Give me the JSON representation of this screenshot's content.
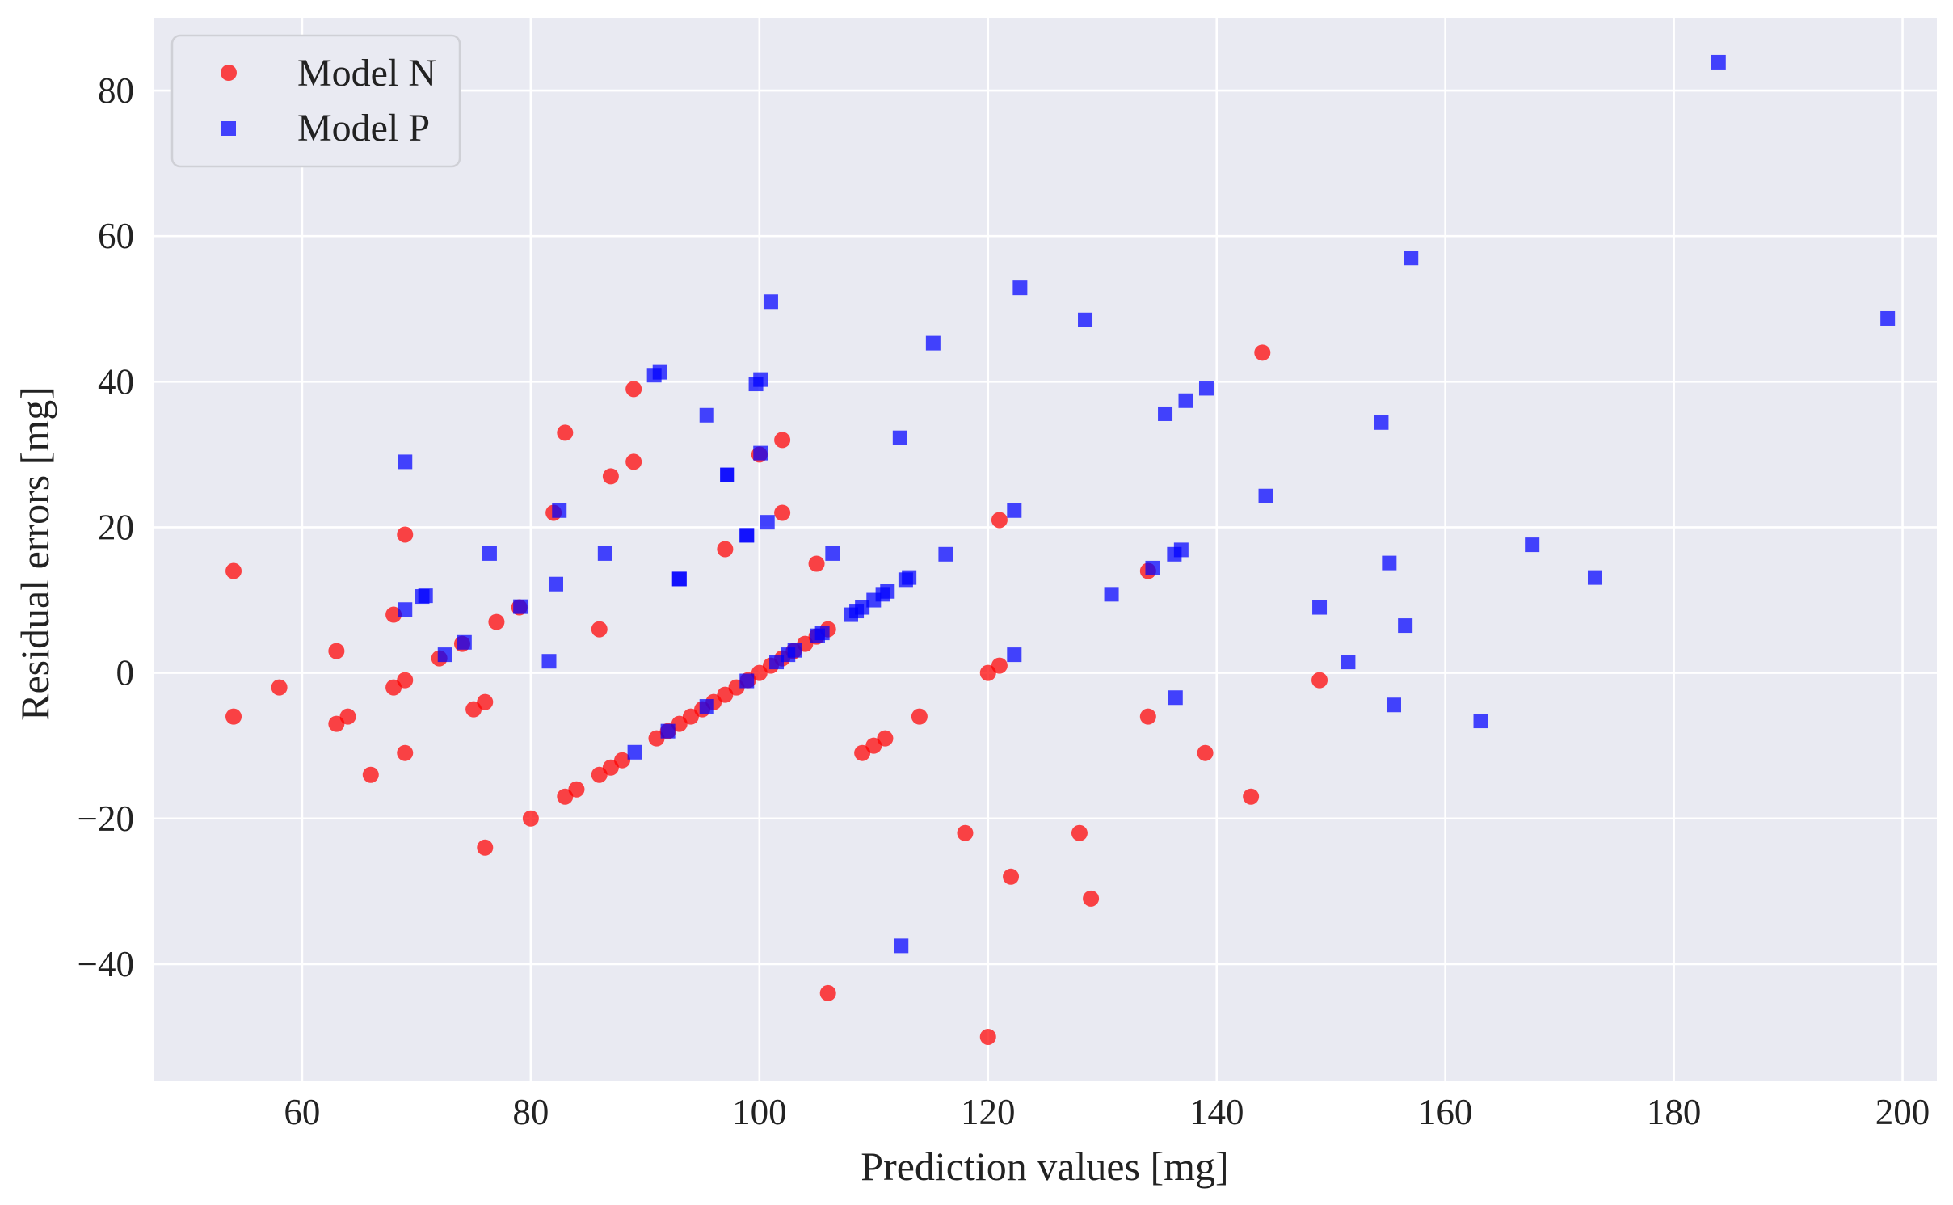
{
  "chart_data": {
    "type": "scatter",
    "xlabel": "Prediction values [mg]",
    "ylabel": "Residual errors [mg]",
    "xlim": [
      47,
      203
    ],
    "ylim": [
      -56,
      90
    ],
    "x_ticks": [
      60,
      80,
      100,
      120,
      140,
      160,
      180,
      200
    ],
    "y_ticks": [
      -40,
      -20,
      0,
      20,
      40,
      60,
      80
    ],
    "x_tick_labels": [
      "60",
      "80",
      "100",
      "120",
      "140",
      "160",
      "180",
      "200"
    ],
    "y_tick_labels": [
      "−40",
      "−20",
      "0",
      "20",
      "40",
      "60",
      "80"
    ],
    "grid": true,
    "legend_position": "top-left",
    "series": [
      {
        "name": "Model N",
        "marker": "circle",
        "color": "#ff0000",
        "points": [
          [
            54,
            14
          ],
          [
            54,
            -6
          ],
          [
            58,
            -2
          ],
          [
            63,
            3
          ],
          [
            63,
            -7
          ],
          [
            64,
            -6
          ],
          [
            66,
            -14
          ],
          [
            68,
            8
          ],
          [
            68,
            -2
          ],
          [
            69,
            19
          ],
          [
            69,
            -1
          ],
          [
            69,
            -11
          ],
          [
            72,
            2
          ],
          [
            74,
            4
          ],
          [
            75,
            -5
          ],
          [
            76,
            -4
          ],
          [
            76,
            -24
          ],
          [
            77,
            7
          ],
          [
            79,
            9
          ],
          [
            80,
            -20
          ],
          [
            82,
            22
          ],
          [
            83,
            33
          ],
          [
            83,
            -17
          ],
          [
            84,
            -16
          ],
          [
            86,
            6
          ],
          [
            86,
            -14
          ],
          [
            87,
            27
          ],
          [
            87,
            -13
          ],
          [
            88,
            -12
          ],
          [
            89,
            39
          ],
          [
            89,
            29
          ],
          [
            91,
            -9
          ],
          [
            92,
            -8
          ],
          [
            93,
            -7
          ],
          [
            94,
            -6
          ],
          [
            95,
            -5
          ],
          [
            96,
            -4
          ],
          [
            97,
            17
          ],
          [
            97,
            -3
          ],
          [
            98,
            -2
          ],
          [
            99,
            -1
          ],
          [
            100,
            30
          ],
          [
            100,
            0
          ],
          [
            101,
            1
          ],
          [
            102,
            32
          ],
          [
            102,
            22
          ],
          [
            102,
            2
          ],
          [
            103,
            3
          ],
          [
            104,
            4
          ],
          [
            105,
            15
          ],
          [
            105,
            5
          ],
          [
            106,
            6
          ],
          [
            106,
            -44
          ],
          [
            109,
            -11
          ],
          [
            110,
            -10
          ],
          [
            111,
            -9
          ],
          [
            114,
            -6
          ],
          [
            118,
            -22
          ],
          [
            120,
            0
          ],
          [
            120,
            -50
          ],
          [
            121,
            21
          ],
          [
            121,
            1
          ],
          [
            122,
            -28
          ],
          [
            128,
            -22
          ],
          [
            129,
            -31
          ],
          [
            134,
            14
          ],
          [
            134,
            -6
          ],
          [
            139,
            -11
          ],
          [
            143,
            -17
          ],
          [
            144,
            44
          ],
          [
            149,
            -1
          ]
        ]
      },
      {
        "name": "Model P",
        "marker": "square",
        "color": "#0000ff",
        "points": [
          [
            69,
            29
          ],
          [
            69,
            8.7
          ],
          [
            70.5,
            10.5
          ],
          [
            70.8,
            10.6
          ],
          [
            72.5,
            2.5
          ],
          [
            74.2,
            4.2
          ],
          [
            76.4,
            16.4
          ],
          [
            79.1,
            9.1
          ],
          [
            81.6,
            1.6
          ],
          [
            82.2,
            12.2
          ],
          [
            82.5,
            22.3
          ],
          [
            86.5,
            16.4
          ],
          [
            89.1,
            -10.9
          ],
          [
            90.8,
            40.9
          ],
          [
            91.3,
            41.3
          ],
          [
            92,
            -8
          ],
          [
            93,
            12.9
          ],
          [
            93,
            12.9
          ],
          [
            95.4,
            35.4
          ],
          [
            95.4,
            -4.6
          ],
          [
            97.2,
            27.2
          ],
          [
            97.2,
            27.2
          ],
          [
            98.9,
            18.9
          ],
          [
            98.9,
            18.9
          ],
          [
            98.9,
            -1.1
          ],
          [
            99.7,
            39.7
          ],
          [
            100.1,
            40.3
          ],
          [
            100.1,
            30.2
          ],
          [
            100.7,
            20.7
          ],
          [
            101,
            51
          ],
          [
            101.5,
            1.5
          ],
          [
            102.5,
            2.5
          ],
          [
            103.1,
            3.1
          ],
          [
            105.1,
            5.1
          ],
          [
            105.5,
            5.5
          ],
          [
            106.4,
            16.4
          ],
          [
            108,
            8
          ],
          [
            108.5,
            8.5
          ],
          [
            109,
            9
          ],
          [
            110,
            10
          ],
          [
            110.8,
            10.8
          ],
          [
            111.2,
            11.2
          ],
          [
            112.3,
            32.3
          ],
          [
            112.4,
            -37.5
          ],
          [
            112.8,
            12.8
          ],
          [
            113.1,
            13.1
          ],
          [
            115.2,
            45.3
          ],
          [
            116.3,
            16.3
          ],
          [
            122.3,
            22.3
          ],
          [
            122.3,
            2.5
          ],
          [
            122.8,
            52.9
          ],
          [
            128.5,
            48.5
          ],
          [
            130.8,
            10.8
          ],
          [
            134.4,
            14.4
          ],
          [
            135.5,
            35.6
          ],
          [
            136.3,
            16.3
          ],
          [
            136.4,
            -3.4
          ],
          [
            136.9,
            16.9
          ],
          [
            137.3,
            37.4
          ],
          [
            139.1,
            39.1
          ],
          [
            144.3,
            24.3
          ],
          [
            149,
            9
          ],
          [
            151.5,
            1.5
          ],
          [
            154.4,
            34.4
          ],
          [
            155.1,
            15.1
          ],
          [
            155.5,
            -4.4
          ],
          [
            156.5,
            6.5
          ],
          [
            157,
            57
          ],
          [
            163.1,
            -6.6
          ],
          [
            167.6,
            17.6
          ],
          [
            173.1,
            13.1
          ],
          [
            183.9,
            83.9
          ],
          [
            198.7,
            48.7
          ]
        ]
      }
    ]
  }
}
